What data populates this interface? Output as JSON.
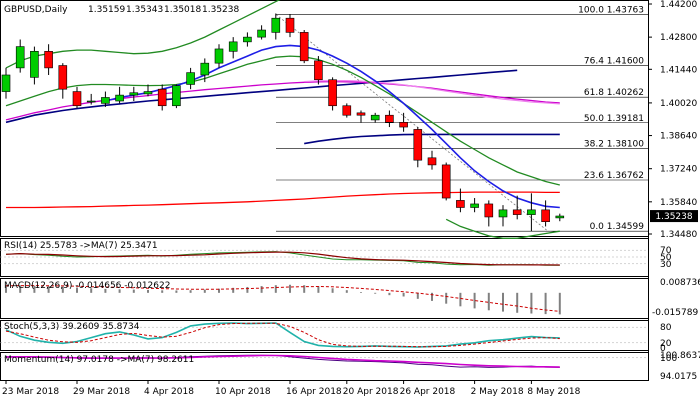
{
  "chart_data": {
    "type": "candlestick",
    "header": {
      "symbol_label": "GBPUSD,Daily",
      "ohlc": [
        "1.35159",
        "1.35343",
        "1.35018",
        "1.35238"
      ]
    },
    "current_price": "1.35238",
    "main_y_ticks": [
      "1.44200",
      "1.42800",
      "1.41440",
      "1.40020",
      "1.38640",
      "1.37240",
      "1.35840",
      "1.34480"
    ],
    "x_tick_labels": [
      "23 Mar 2018",
      "29 Mar 2018",
      "4 Apr 2018",
      "10 Apr 2018",
      "16 Apr 2018",
      "20 Apr 2018",
      "26 Apr 2018",
      "2 May 2018",
      "8 May 2018"
    ],
    "fibonacci": [
      {
        "ratio": "100.0",
        "price": 1.43763,
        "price_label": "1.43763"
      },
      {
        "ratio": "76.4",
        "price": 1.416,
        "price_label": "1.41600"
      },
      {
        "ratio": "61.8",
        "price": 1.40262,
        "price_label": "1.40262"
      },
      {
        "ratio": "50.0",
        "price": 1.39181,
        "price_label": "1.39181"
      },
      {
        "ratio": "38.2",
        "price": 1.381,
        "price_label": "1.38100"
      },
      {
        "ratio": "23.6",
        "price": 1.36762,
        "price_label": "1.36762"
      },
      {
        "ratio": "0.0",
        "price": 1.34599,
        "price_label": "1.34599"
      }
    ],
    "candles": [
      {
        "o": 1.405,
        "h": 1.415,
        "l": 1.402,
        "c": 1.412
      },
      {
        "o": 1.415,
        "h": 1.427,
        "l": 1.413,
        "c": 1.424
      },
      {
        "o": 1.411,
        "h": 1.424,
        "l": 1.408,
        "c": 1.422
      },
      {
        "o": 1.422,
        "h": 1.425,
        "l": 1.412,
        "c": 1.415
      },
      {
        "o": 1.416,
        "h": 1.417,
        "l": 1.402,
        "c": 1.406
      },
      {
        "o": 1.405,
        "h": 1.407,
        "l": 1.398,
        "c": 1.399
      },
      {
        "o": 1.401,
        "h": 1.404,
        "l": 1.3995,
        "c": 1.401
      },
      {
        "o": 1.4,
        "h": 1.405,
        "l": 1.3985,
        "c": 1.4025
      },
      {
        "o": 1.401,
        "h": 1.407,
        "l": 1.4,
        "c": 1.4035
      },
      {
        "o": 1.4035,
        "h": 1.407,
        "l": 1.401,
        "c": 1.4045
      },
      {
        "o": 1.404,
        "h": 1.408,
        "l": 1.403,
        "c": 1.405
      },
      {
        "o": 1.406,
        "h": 1.408,
        "l": 1.397,
        "c": 1.399
      },
      {
        "o": 1.399,
        "h": 1.408,
        "l": 1.398,
        "c": 1.4075
      },
      {
        "o": 1.408,
        "h": 1.415,
        "l": 1.406,
        "c": 1.413
      },
      {
        "o": 1.412,
        "h": 1.419,
        "l": 1.409,
        "c": 1.417
      },
      {
        "o": 1.417,
        "h": 1.425,
        "l": 1.415,
        "c": 1.423
      },
      {
        "o": 1.422,
        "h": 1.428,
        "l": 1.419,
        "c": 1.426
      },
      {
        "o": 1.426,
        "h": 1.43,
        "l": 1.424,
        "c": 1.428
      },
      {
        "o": 1.428,
        "h": 1.433,
        "l": 1.427,
        "c": 1.431
      },
      {
        "o": 1.43,
        "h": 1.438,
        "l": 1.427,
        "c": 1.436
      },
      {
        "o": 1.436,
        "h": 1.4376,
        "l": 1.428,
        "c": 1.43
      },
      {
        "o": 1.43,
        "h": 1.431,
        "l": 1.417,
        "c": 1.418
      },
      {
        "o": 1.418,
        "h": 1.42,
        "l": 1.408,
        "c": 1.41
      },
      {
        "o": 1.41,
        "h": 1.411,
        "l": 1.397,
        "c": 1.399
      },
      {
        "o": 1.399,
        "h": 1.4,
        "l": 1.394,
        "c": 1.395
      },
      {
        "o": 1.396,
        "h": 1.397,
        "l": 1.392,
        "c": 1.395
      },
      {
        "o": 1.393,
        "h": 1.396,
        "l": 1.392,
        "c": 1.395
      },
      {
        "o": 1.395,
        "h": 1.397,
        "l": 1.39,
        "c": 1.392
      },
      {
        "o": 1.392,
        "h": 1.396,
        "l": 1.388,
        "c": 1.39
      },
      {
        "o": 1.389,
        "h": 1.39,
        "l": 1.373,
        "c": 1.376
      },
      {
        "o": 1.377,
        "h": 1.38,
        "l": 1.372,
        "c": 1.374
      },
      {
        "o": 1.374,
        "h": 1.375,
        "l": 1.359,
        "c": 1.36
      },
      {
        "o": 1.359,
        "h": 1.364,
        "l": 1.354,
        "c": 1.356
      },
      {
        "o": 1.356,
        "h": 1.36,
        "l": 1.354,
        "c": 1.3575
      },
      {
        "o": 1.3575,
        "h": 1.359,
        "l": 1.348,
        "c": 1.352
      },
      {
        "o": 1.352,
        "h": 1.357,
        "l": 1.348,
        "c": 1.355
      },
      {
        "o": 1.355,
        "h": 1.361,
        "l": 1.351,
        "c": 1.353
      },
      {
        "o": 1.353,
        "h": 1.362,
        "l": 1.346,
        "c": 1.355
      },
      {
        "o": 1.355,
        "h": 1.359,
        "l": 1.348,
        "c": 1.35
      },
      {
        "o": 1.3516,
        "h": 1.3534,
        "l": 1.3502,
        "c": 1.3524
      }
    ],
    "overlays": [
      {
        "color": "#ff0000",
        "values": [
          1.356,
          1.356,
          1.356,
          1.3561,
          1.3562,
          1.3563,
          1.3564,
          1.3566,
          1.3567,
          1.3569,
          1.357,
          1.3572,
          1.3574,
          1.3576,
          1.3578,
          1.358,
          1.3582,
          1.3584,
          1.3587,
          1.359,
          1.3593,
          1.3596,
          1.36,
          1.3604,
          1.3608,
          1.3611,
          1.3614,
          1.3617,
          1.3619,
          1.3621,
          1.3622,
          1.3623,
          1.3624,
          1.3625,
          1.3625,
          1.3625,
          1.3625,
          1.3625,
          1.3624,
          1.3624
        ]
      },
      {
        "color": "#000080",
        "values": [
          1.392,
          1.3935,
          1.395,
          1.396,
          1.397,
          1.3978,
          1.3985,
          1.3992,
          1.3998,
          1.4004,
          1.401,
          1.4015,
          1.402,
          1.4025,
          1.403,
          1.4035,
          1.404,
          1.4045,
          1.405,
          1.4055,
          1.406,
          1.4065,
          1.407,
          1.4075,
          1.408,
          1.4085,
          1.409,
          1.4095,
          1.41,
          1.4105,
          1.411,
          1.4115,
          1.412,
          1.4125,
          1.413,
          1.4135,
          1.414,
          null,
          null,
          null
        ]
      },
      {
        "color": "#000080",
        "values": [
          null,
          null,
          null,
          null,
          null,
          null,
          null,
          null,
          null,
          null,
          null,
          null,
          null,
          null,
          null,
          null,
          null,
          null,
          null,
          null,
          null,
          1.383,
          1.384,
          1.3848,
          1.3855,
          1.386,
          1.3863,
          1.3866,
          1.3868,
          1.3869,
          1.3869,
          1.3869,
          1.3869,
          1.3869,
          1.3869,
          1.3869,
          1.3869,
          1.3869,
          1.3869,
          1.3869
        ]
      },
      {
        "color": "#cc00cc",
        "values": [
          1.393,
          1.3945,
          1.396,
          1.3972,
          1.3985,
          1.3995,
          1.4005,
          1.4013,
          1.402,
          1.4027,
          1.4033,
          1.404,
          1.4046,
          1.4052,
          1.4058,
          1.4063,
          1.4068,
          1.4073,
          1.4078,
          1.4082,
          1.4086,
          1.4089,
          1.4091,
          1.4092,
          1.4091,
          1.4089,
          1.4086,
          1.4082,
          1.4077,
          1.4071,
          1.4064,
          1.4056,
          1.4048,
          1.404,
          1.4032,
          1.4025,
          1.4018,
          1.4012,
          1.4006,
          1.4002
        ]
      },
      {
        "color": "#ee82ee",
        "values": [
          null,
          null,
          null,
          null,
          null,
          null,
          null,
          null,
          null,
          null,
          null,
          null,
          null,
          null,
          null,
          null,
          null,
          null,
          null,
          null,
          null,
          1.4092,
          1.4095,
          1.4096,
          1.4096,
          1.4094,
          1.409,
          1.4085,
          1.4078,
          1.407,
          1.4061,
          1.4052,
          1.4043,
          1.4034,
          1.4026,
          1.4018,
          1.4012,
          1.4006,
          1.4002,
          1.3998
        ]
      },
      {
        "color": "#228b22",
        "values": [
          1.399,
          1.401,
          1.403,
          1.405,
          1.4065,
          1.4075,
          1.408,
          1.408,
          1.4078,
          1.4076,
          1.4075,
          1.4076,
          1.408,
          1.409,
          1.4105,
          1.4125,
          1.4145,
          1.4165,
          1.418,
          1.4195,
          1.42,
          1.4197,
          1.4185,
          1.4165,
          1.414,
          1.411,
          1.4075,
          1.404,
          1.4,
          1.396,
          1.392,
          1.388,
          1.384,
          1.3805,
          1.377,
          1.374,
          1.371,
          1.369,
          1.367,
          1.3655
        ]
      },
      {
        "color": "#1e1ee6",
        "values": [
          null,
          null,
          null,
          null,
          null,
          null,
          null,
          1.401,
          1.4025,
          1.4035,
          1.4045,
          1.406,
          1.4075,
          1.4095,
          1.412,
          1.415,
          1.4175,
          1.42,
          1.4225,
          1.424,
          1.4245,
          1.424,
          1.4225,
          1.42,
          1.417,
          1.4135,
          1.4095,
          1.405,
          1.4,
          1.3945,
          1.389,
          1.383,
          1.377,
          1.3715,
          1.367,
          1.363,
          1.36,
          1.358,
          1.3565,
          1.356
        ]
      },
      {
        "color": "#228b22",
        "values": [
          1.415,
          1.418,
          1.42,
          1.421,
          1.422,
          1.4225,
          1.4225,
          1.422,
          1.4215,
          1.421,
          1.4212,
          1.422,
          1.4235,
          1.4255,
          1.428,
          1.431,
          1.434,
          1.437,
          1.44,
          1.443,
          1.446,
          1.446,
          null,
          null,
          null,
          null,
          null,
          null,
          null,
          null,
          null,
          null,
          null,
          null,
          null,
          null,
          null,
          null,
          null,
          null
        ]
      },
      {
        "color": "#228b22",
        "values": [
          null,
          null,
          null,
          null,
          null,
          null,
          null,
          null,
          null,
          null,
          null,
          null,
          null,
          null,
          null,
          null,
          null,
          null,
          null,
          null,
          null,
          null,
          null,
          null,
          null,
          null,
          null,
          null,
          null,
          null,
          null,
          1.351,
          1.348,
          1.346,
          1.344,
          1.343,
          1.343,
          1.344,
          1.345,
          1.346
        ]
      }
    ],
    "indicators": {
      "rsi": {
        "label": "RSI(14) 25.5783 ->MA(7) 25.3471",
        "ticks": [
          "70",
          "50",
          "30"
        ]
      },
      "macd": {
        "label": "MACD(12,26,9) -0.014656 -0.012622",
        "ticks": [
          "0.008736",
          "-0.015789"
        ],
        "histogram": [
          0.0052,
          0.0051,
          0.0049,
          0.0046,
          0.0042,
          0.0036,
          0.0031,
          0.0027,
          0.0024,
          0.0022,
          0.002,
          0.0017,
          0.0016,
          0.0018,
          0.0022,
          0.0028,
          0.0034,
          0.004,
          0.0046,
          0.0052,
          0.0055,
          0.0052,
          0.0044,
          0.0031,
          0.0018,
          0.0005,
          -0.0006,
          -0.0016,
          -0.0025,
          -0.0041,
          -0.0055,
          -0.0074,
          -0.0092,
          -0.0106,
          -0.0119,
          -0.0128,
          -0.0136,
          -0.0141,
          -0.0145,
          -0.0147
        ],
        "signal": [
          0.0048,
          0.0049,
          0.0049,
          0.0048,
          0.0047,
          0.0045,
          0.0042,
          0.004,
          0.0037,
          0.0034,
          0.0031,
          0.0029,
          0.0026,
          0.0025,
          0.0024,
          0.0025,
          0.0027,
          0.0029,
          0.0032,
          0.0036,
          0.004,
          0.0042,
          0.0043,
          0.0041,
          0.0036,
          0.003,
          0.0023,
          0.0015,
          0.0007,
          -0.0002,
          -0.0013,
          -0.0025,
          -0.0038,
          -0.0052,
          -0.0065,
          -0.0078,
          -0.009,
          -0.0105,
          -0.0117,
          -0.0126
        ]
      },
      "stoch": {
        "label": "Stoch(5,3,3) 39.2609 35.8734",
        "ticks": [
          "80",
          "20",
          "0"
        ]
      },
      "momentum": {
        "label": "Momentum(14) 97.0178 ->MA(7) 98.2611",
        "ticks": [
          "100.8637",
          "100",
          "94.0175"
        ]
      }
    }
  }
}
